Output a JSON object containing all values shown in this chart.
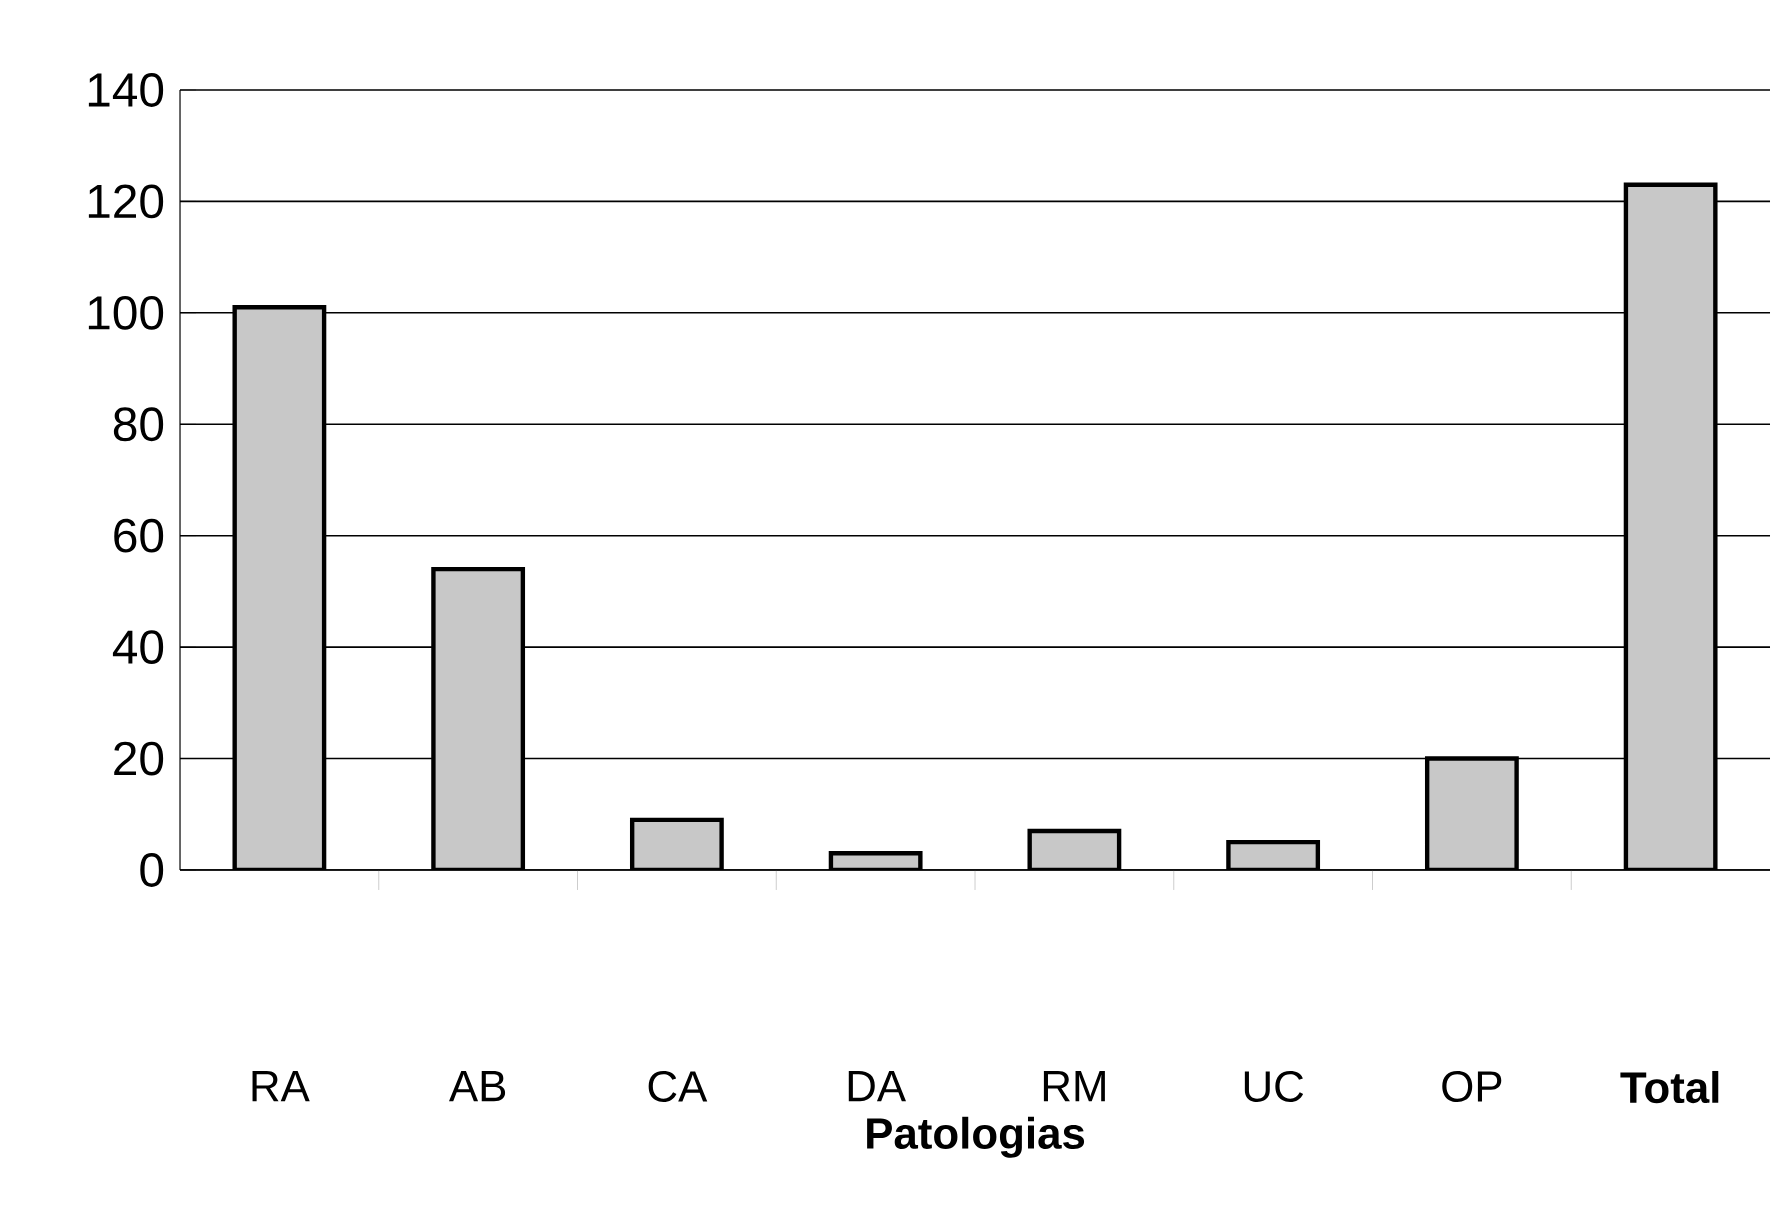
{
  "chart_data": {
    "type": "bar",
    "xlabel": "Patologias",
    "categories": [
      "RA",
      "AB",
      "CA",
      "DA",
      "RM",
      "UC",
      "OP",
      "**Total**"
    ],
    "values": [
      101,
      54,
      9,
      3,
      7,
      5,
      20,
      123
    ],
    "color": "#c8c8c8",
    "ylim": [
      0,
      140
    ],
    "yticks": [
      0,
      20,
      40,
      60,
      80,
      100,
      120,
      140
    ],
    "grid": "y"
  }
}
